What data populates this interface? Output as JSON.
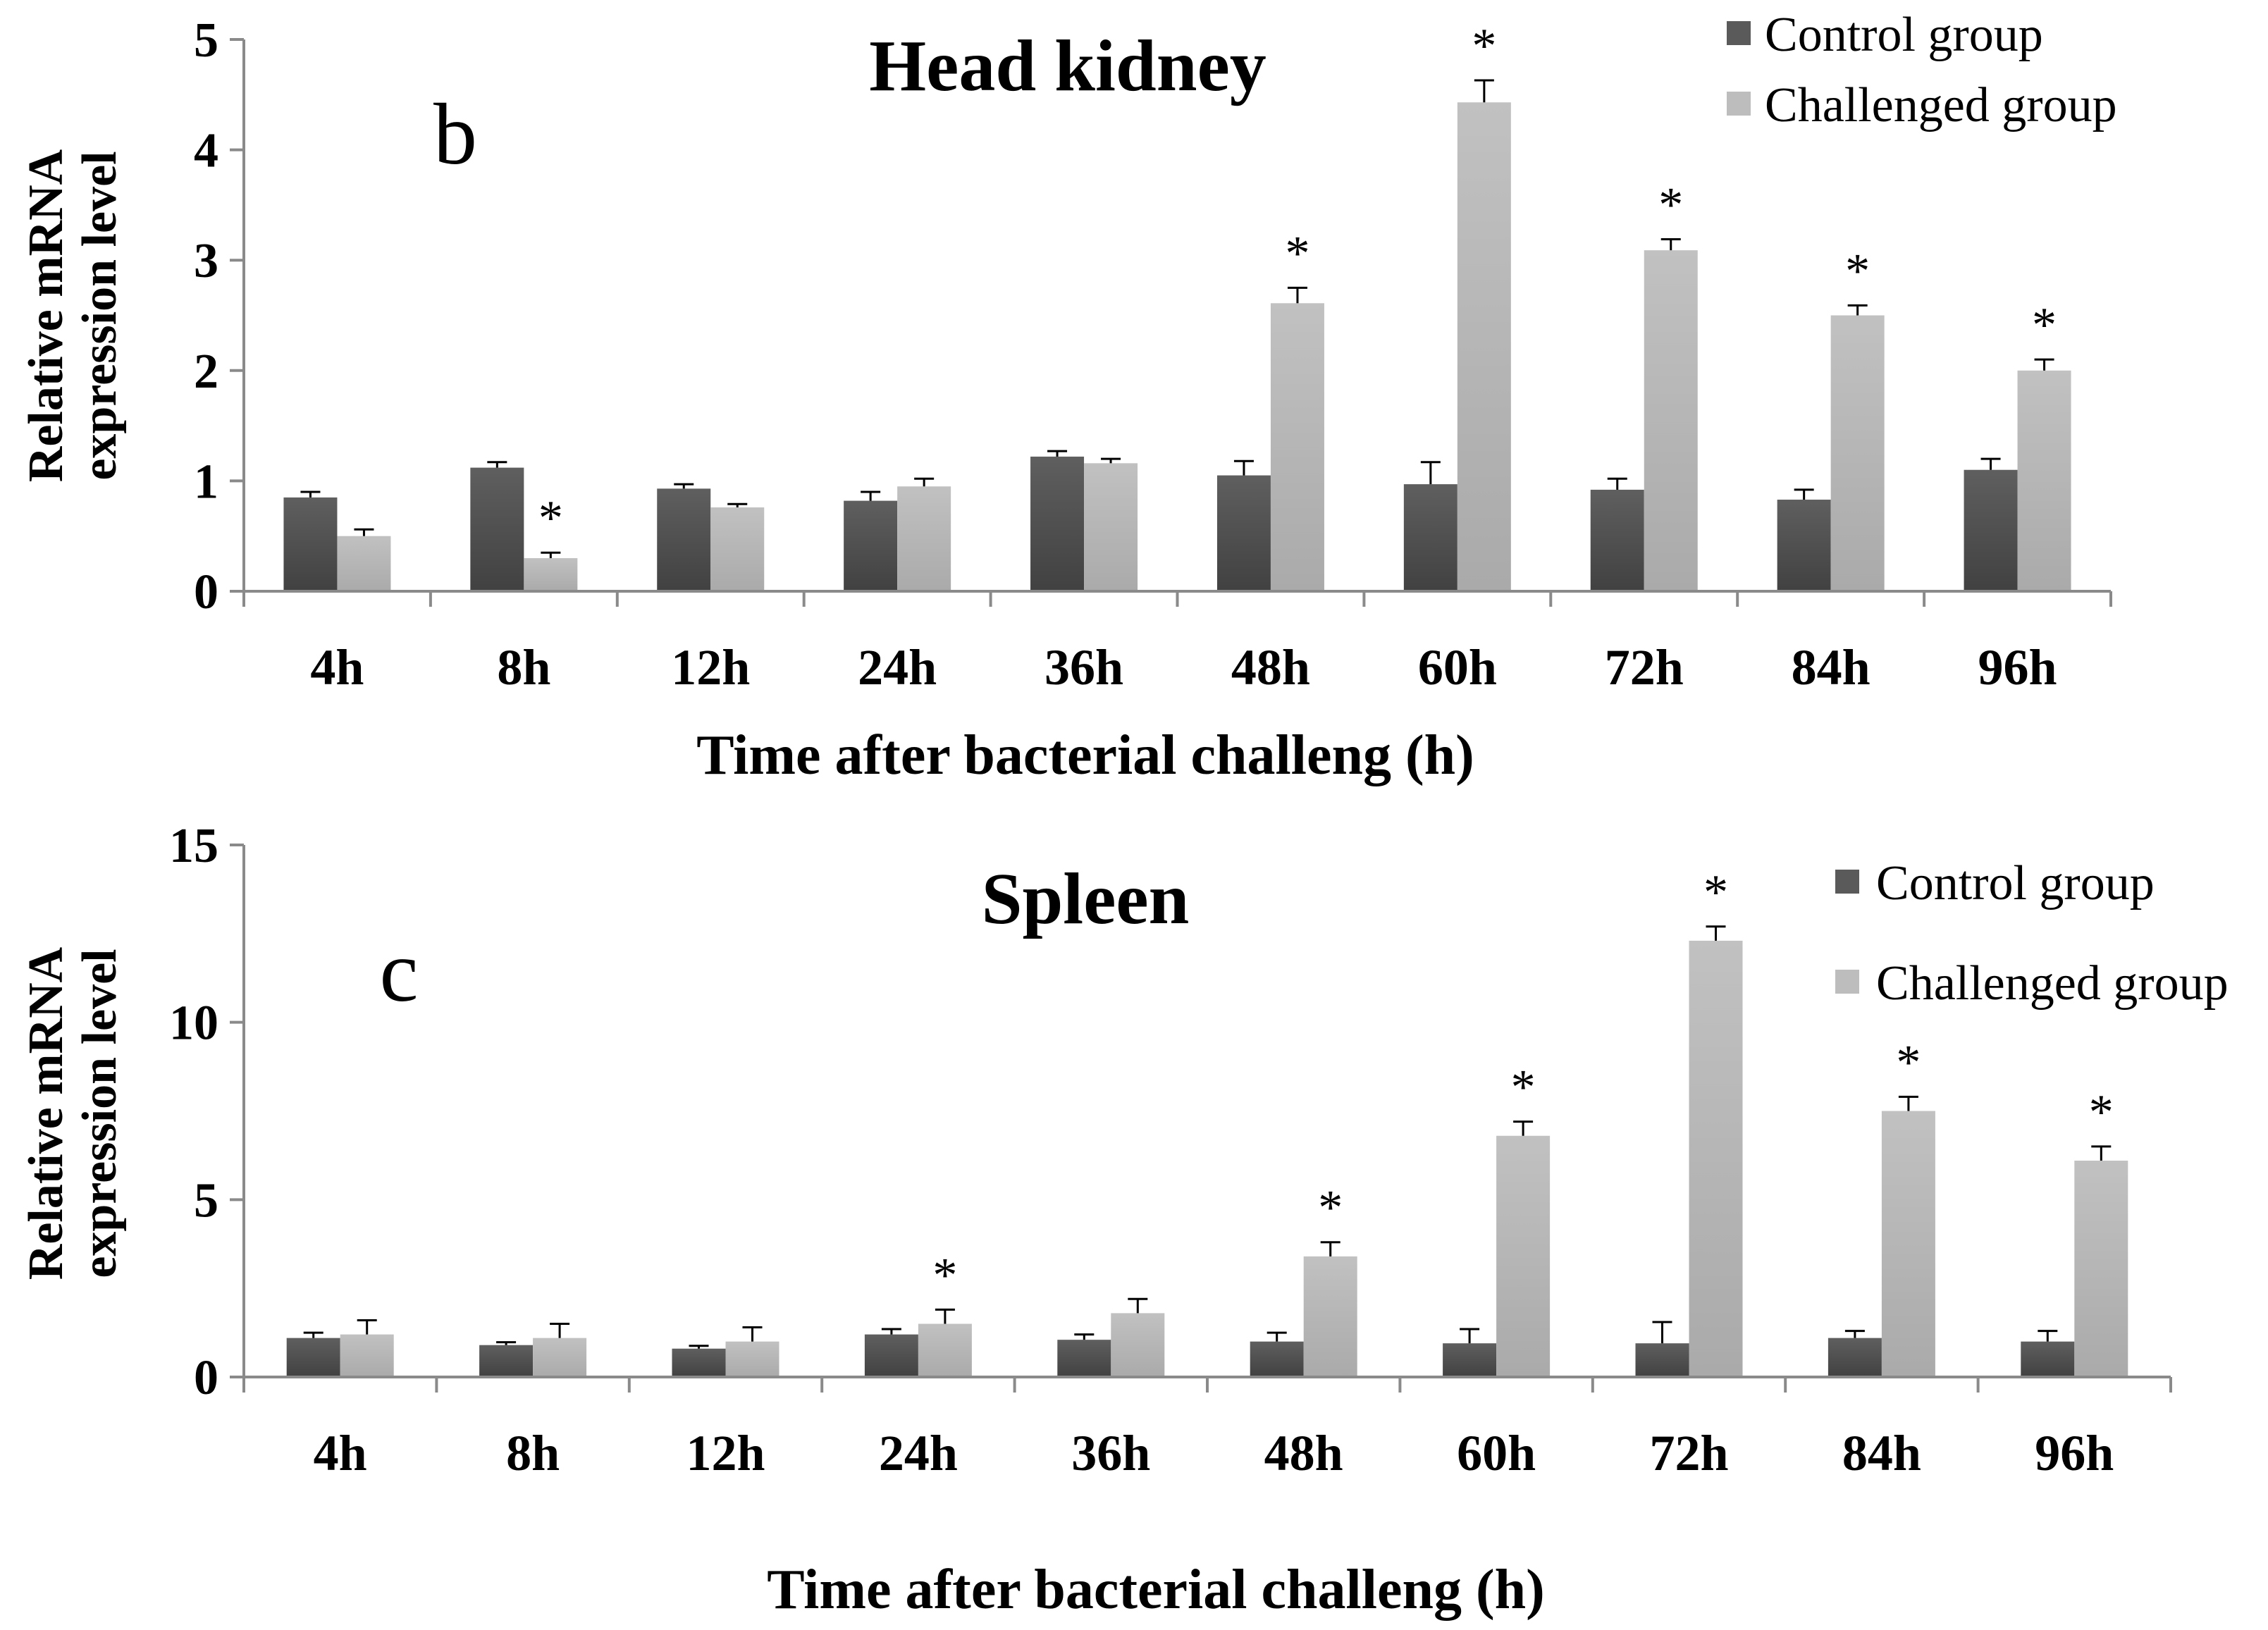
{
  "chart_data": [
    {
      "type": "bar",
      "panel_letter": "b",
      "title": "Head kidney",
      "categories": [
        "4h",
        "8h",
        "12h",
        "24h",
        "36h",
        "48h",
        "60h",
        "72h",
        "84h",
        "96h"
      ],
      "series": [
        {
          "name": "Control group",
          "color": "#5a5a5a",
          "values": [
            0.85,
            1.12,
            0.93,
            0.82,
            1.22,
            1.05,
            0.97,
            0.92,
            0.83,
            1.1
          ],
          "errors": [
            0.05,
            0.05,
            0.04,
            0.08,
            0.05,
            0.13,
            0.2,
            0.1,
            0.09,
            0.1
          ]
        },
        {
          "name": "Challenged group",
          "color": "#bdbdbd",
          "values": [
            0.5,
            0.3,
            0.76,
            0.95,
            1.16,
            2.61,
            4.43,
            3.09,
            2.5,
            2.0
          ],
          "errors": [
            0.06,
            0.05,
            0.03,
            0.07,
            0.04,
            0.14,
            0.2,
            0.1,
            0.09,
            0.1
          ]
        }
      ],
      "significance": [
        "",
        "*",
        "",
        "",
        "",
        "*",
        "*",
        "*",
        "*",
        "*"
      ],
      "xlabel": "Time after bacterial challeng (h)",
      "ylabel_line1": "Relative mRNA",
      "ylabel_line2": "expression level",
      "ylim": [
        0,
        5
      ],
      "yticks": [
        "0",
        "1",
        "2",
        "3",
        "4",
        "5"
      ]
    },
    {
      "type": "bar",
      "panel_letter": "c",
      "title": "Spleen",
      "categories": [
        "4h",
        "8h",
        "12h",
        "24h",
        "36h",
        "48h",
        "60h",
        "72h",
        "84h",
        "96h"
      ],
      "series": [
        {
          "name": "Control group",
          "color": "#5a5a5a",
          "values": [
            1.1,
            0.9,
            0.8,
            1.2,
            1.05,
            1.0,
            0.95,
            0.95,
            1.1,
            1.0
          ],
          "errors": [
            0.15,
            0.08,
            0.08,
            0.15,
            0.15,
            0.25,
            0.4,
            0.6,
            0.2,
            0.3
          ]
        },
        {
          "name": "Challenged group",
          "color": "#bdbdbd",
          "values": [
            1.2,
            1.1,
            1.0,
            1.5,
            1.8,
            3.4,
            6.8,
            12.3,
            7.5,
            6.1
          ],
          "errors": [
            0.4,
            0.4,
            0.4,
            0.4,
            0.4,
            0.4,
            0.4,
            0.4,
            0.4,
            0.4
          ]
        }
      ],
      "significance": [
        "",
        "",
        "",
        "*",
        "",
        "*",
        "*",
        "*",
        "*",
        "*"
      ],
      "xlabel": "Time after bacterial challeng (h)",
      "ylabel_line1": "Relative mRNA",
      "ylabel_line2": "expression level",
      "ylim": [
        0,
        15
      ],
      "yticks": [
        "0",
        "5",
        "10",
        "15"
      ]
    }
  ]
}
